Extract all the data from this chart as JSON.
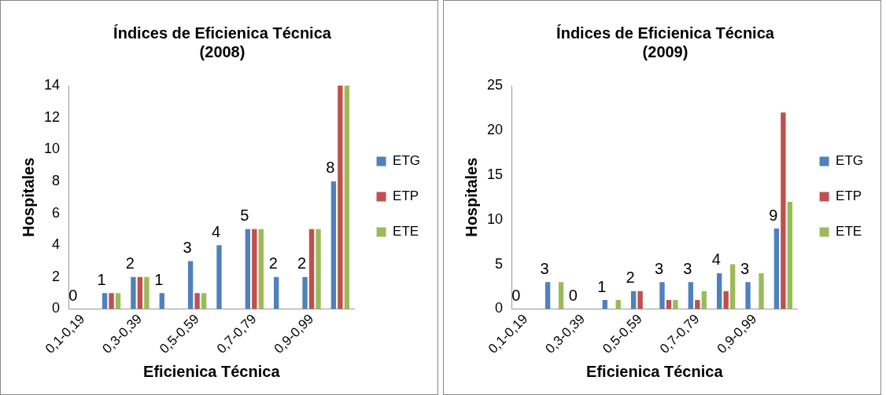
{
  "chart_data": [
    {
      "type": "bar",
      "title": "Índices de Eficienica Técnica\n(2008)",
      "xlabel": "Eficienica Técnica",
      "ylabel": "Hospitales",
      "categories": [
        "0,1-0,19",
        null,
        "0,3-0,39",
        null,
        "0,5-0,59",
        null,
        "0,7-0,79",
        null,
        "0,9-0,99",
        null
      ],
      "series": [
        {
          "name": "ETG",
          "color": "#4f81bd",
          "values": [
            0,
            1,
            2,
            1,
            3,
            4,
            5,
            2,
            2,
            8
          ],
          "value_labels": [
            "0",
            "1",
            "2",
            "1",
            "3",
            "4",
            "5",
            "2",
            "2",
            "8"
          ]
        },
        {
          "name": "ETP",
          "color": "#c0504d",
          "values": [
            0,
            1,
            2,
            0,
            1,
            0,
            5,
            0,
            5,
            14
          ]
        },
        {
          "name": "ETE",
          "color": "#9bbb59",
          "values": [
            0,
            1,
            2,
            0,
            1,
            0,
            5,
            0,
            5,
            14
          ]
        }
      ],
      "ylim": [
        0,
        14
      ],
      "yticks": [
        0,
        2,
        4,
        6,
        8,
        10,
        12,
        14
      ],
      "grid": false,
      "legend": "right"
    },
    {
      "type": "bar",
      "title": "Índices de Eficienica Técnica\n(2009)",
      "xlabel": "Eficienica Técnica",
      "ylabel": "Hospitales",
      "categories": [
        "0,1-0,19",
        null,
        "0,3-0,39",
        null,
        "0,5-0,59",
        null,
        "0,7-0,79",
        null,
        "0,9-0,99",
        null
      ],
      "series": [
        {
          "name": "ETG",
          "color": "#4f81bd",
          "values": [
            0,
            3,
            0,
            1,
            2,
            3,
            3,
            4,
            3,
            9
          ],
          "value_labels": [
            "0",
            "3",
            "0",
            "1",
            "2",
            "3",
            "3",
            "4",
            "3",
            "9"
          ]
        },
        {
          "name": "ETP",
          "color": "#c0504d",
          "values": [
            0,
            0,
            0,
            0,
            2,
            1,
            1,
            2,
            0,
            22
          ]
        },
        {
          "name": "ETE",
          "color": "#9bbb59",
          "values": [
            0,
            3,
            0,
            1,
            0,
            1,
            2,
            5,
            4,
            12
          ]
        }
      ],
      "ylim": [
        0,
        25
      ],
      "yticks": [
        0,
        5,
        10,
        15,
        20,
        25
      ],
      "grid": false,
      "legend": "right"
    }
  ]
}
